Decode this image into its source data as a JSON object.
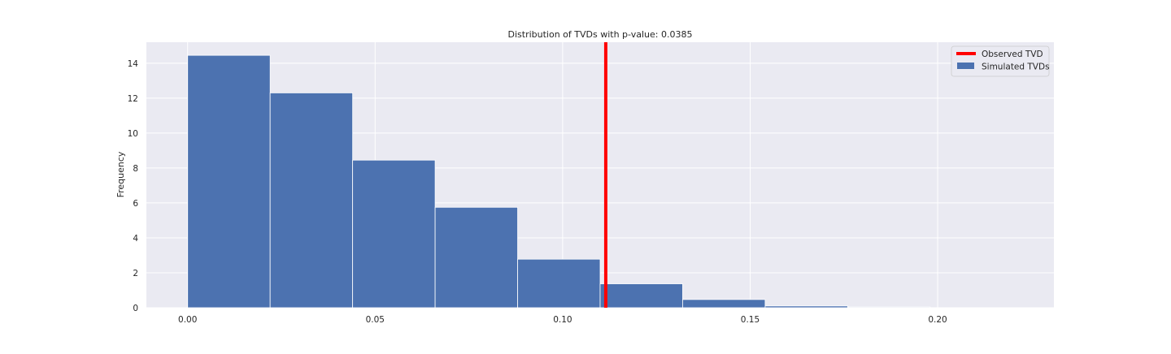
{
  "chart_data": {
    "type": "histogram",
    "title": "Distribution of TVDs with p-value: 0.0385",
    "xlabel": "",
    "ylabel": "Frequency",
    "xlim": [
      -0.011,
      0.231
    ],
    "ylim": [
      0,
      15.2
    ],
    "xticks": [
      0.0,
      0.05,
      0.1,
      0.15,
      0.2
    ],
    "xtick_labels": [
      "0.00",
      "0.05",
      "0.10",
      "0.15",
      "0.20"
    ],
    "yticks": [
      0,
      2,
      4,
      6,
      8,
      10,
      12,
      14
    ],
    "ytick_labels": [
      "0",
      "2",
      "4",
      "6",
      "8",
      "10",
      "12",
      "14"
    ],
    "grid": true,
    "legend_position": "top-right",
    "series": [
      {
        "name": "Simulated TVDs",
        "kind": "histogram",
        "color": "#4c72b0",
        "bins": [
          {
            "x0": 0.0,
            "x1": 0.022,
            "value": 14.45
          },
          {
            "x0": 0.022,
            "x1": 0.044,
            "value": 12.3
          },
          {
            "x0": 0.044,
            "x1": 0.066,
            "value": 8.45
          },
          {
            "x0": 0.066,
            "x1": 0.088,
            "value": 5.75
          },
          {
            "x0": 0.088,
            "x1": 0.11,
            "value": 2.78
          },
          {
            "x0": 0.11,
            "x1": 0.132,
            "value": 1.37
          },
          {
            "x0": 0.132,
            "x1": 0.154,
            "value": 0.47
          },
          {
            "x0": 0.154,
            "x1": 0.176,
            "value": 0.1
          },
          {
            "x0": 0.176,
            "x1": 0.198,
            "value": 0.04
          }
        ]
      },
      {
        "name": "Observed TVD",
        "kind": "vline",
        "color": "#ff0000",
        "x": 0.1115
      }
    ],
    "colors": {
      "background": "#eaeaf2",
      "grid": "#ffffff",
      "bar": "#4c72b0",
      "observed": "#ff0000"
    }
  }
}
